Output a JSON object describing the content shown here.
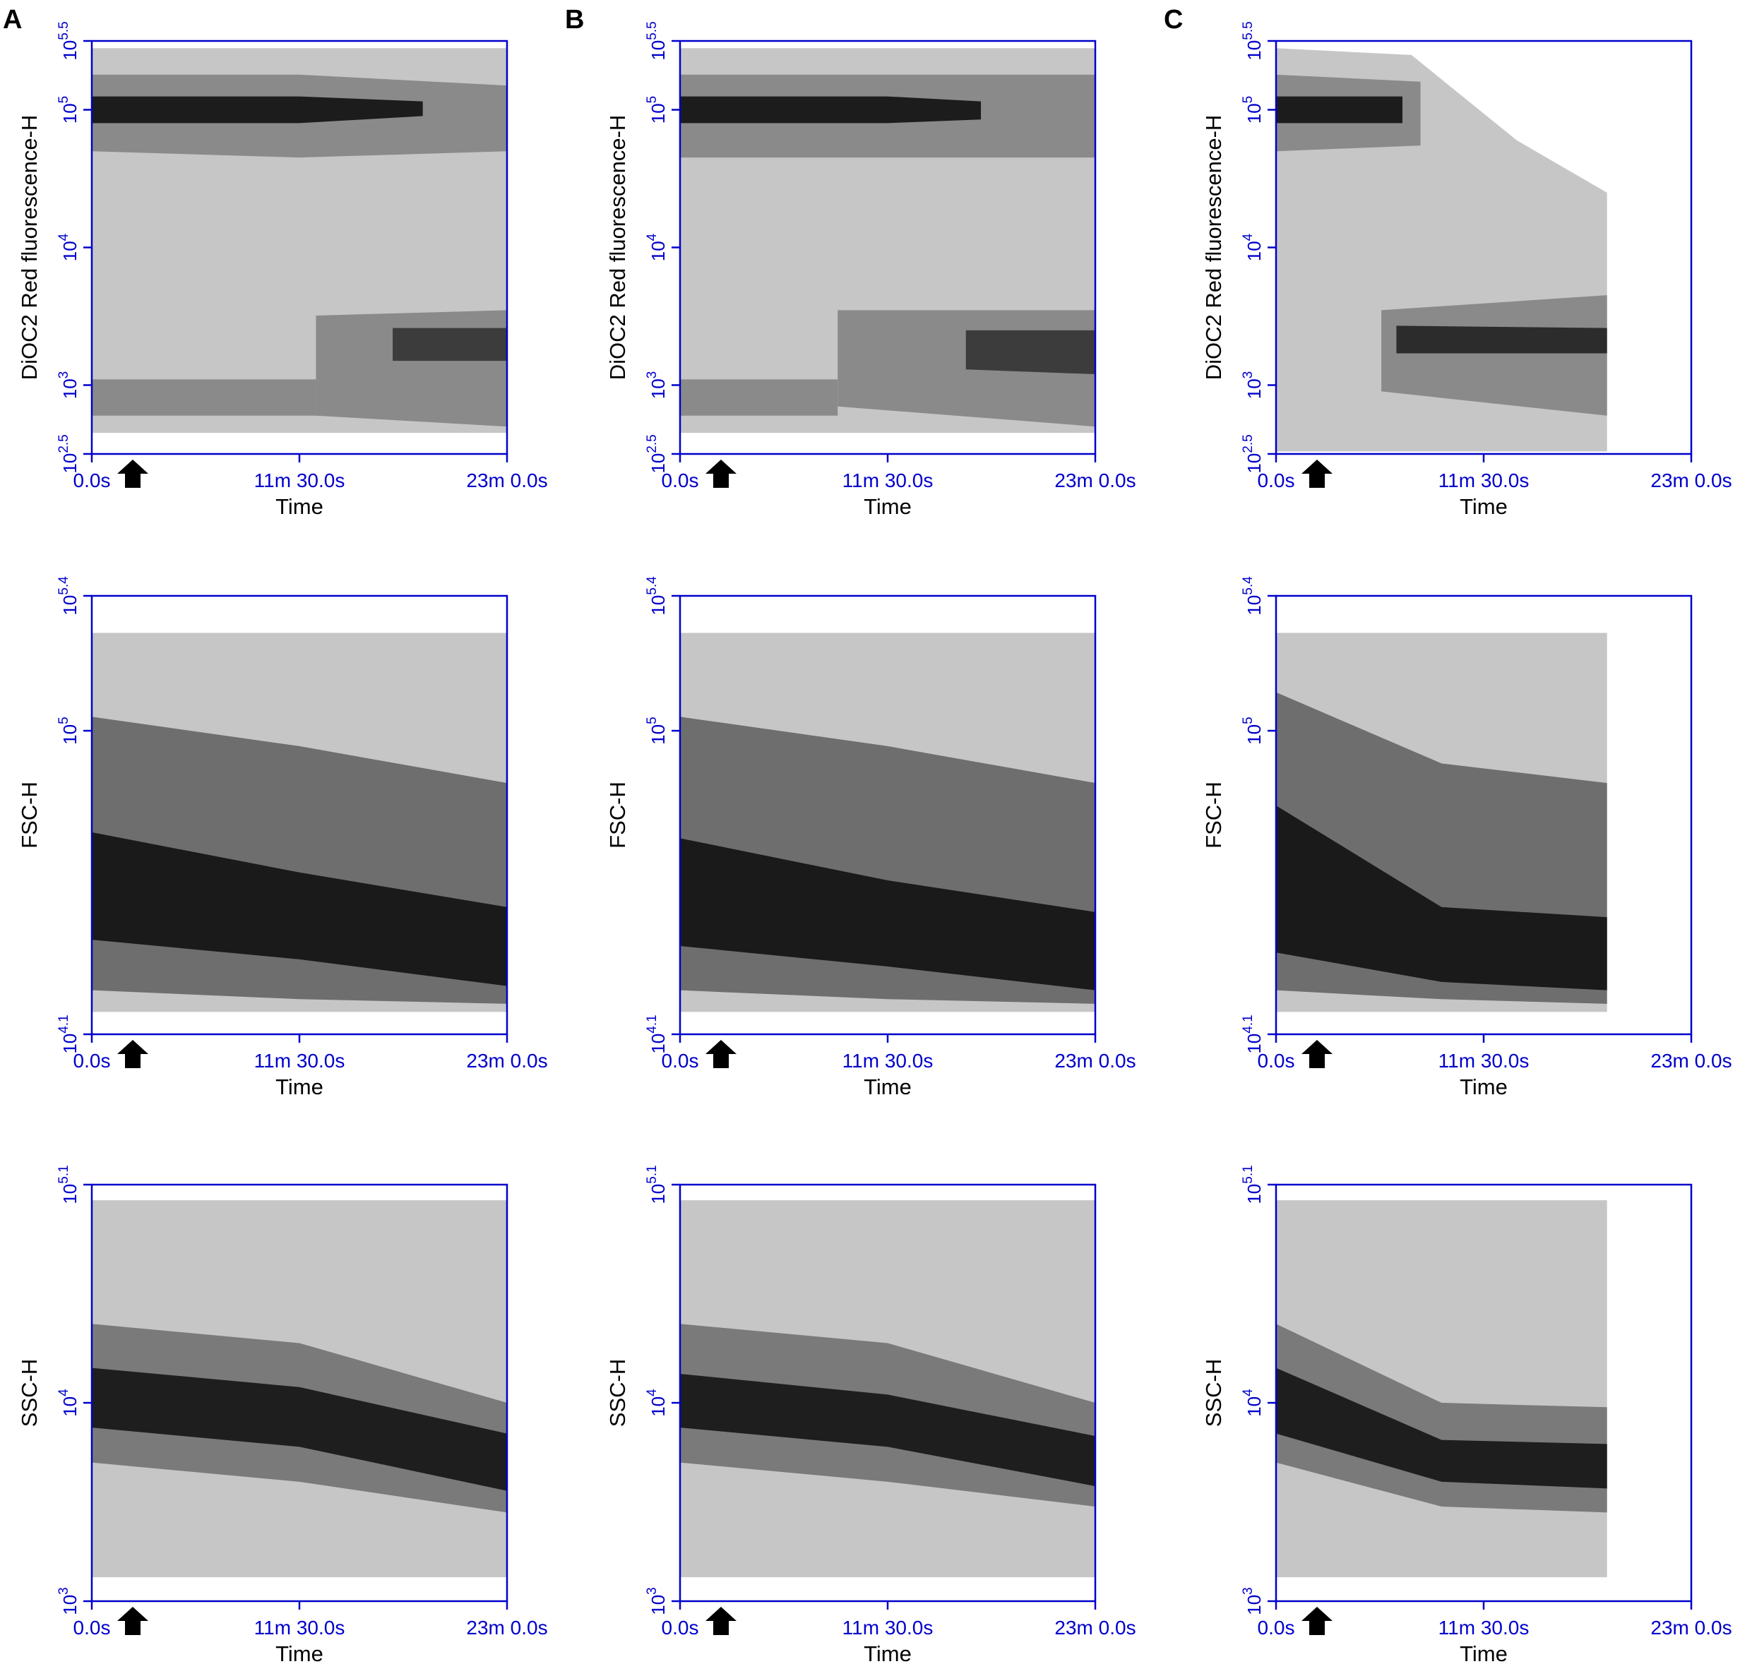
{
  "panel_labels": [
    "A",
    "B",
    "C"
  ],
  "chart_data": [
    {
      "type": "density",
      "xlabel": "Time",
      "ylabel": "DiOC2 Red fluorescence-H",
      "log_y": true,
      "axis_color": "#0000cc",
      "xlim": [
        0,
        1380
      ],
      "xticks": [
        {
          "value": 0,
          "label": "0.0s"
        },
        {
          "value": 690,
          "label": "11m 30.0s"
        },
        {
          "value": 1380,
          "label": "23m 0.0s"
        }
      ],
      "ylim": [
        316.2278,
        316227.8
      ],
      "yticks": [
        {
          "value": 316.2278,
          "base": "10",
          "exponent": "2.5"
        },
        {
          "value": 1000,
          "base": "10",
          "exponent": "3"
        },
        {
          "value": 10000,
          "base": "10",
          "exponent": "4"
        },
        {
          "value": 100000,
          "base": "10",
          "exponent": "5"
        },
        {
          "value": 316227.8,
          "base": "10",
          "exponent": "5.5"
        }
      ],
      "series": [
        {
          "color": "#c6c6c6",
          "x": [
            0,
            1380
          ],
          "low": [
            450,
            450
          ],
          "high": [
            280000,
            280000
          ]
        },
        {
          "color": "#8a8a8a",
          "x": [
            0,
            690,
            1380
          ],
          "low": [
            50000,
            45000,
            50000
          ],
          "high": [
            180000,
            180000,
            150000
          ]
        },
        {
          "color": "#1c1c1c",
          "x": [
            0,
            690,
            1100
          ],
          "low": [
            80000,
            80000,
            90000
          ],
          "high": [
            125000,
            125000,
            115000
          ]
        },
        {
          "color": "#8a8a8a",
          "x": [
            0,
            745
          ],
          "low": [
            600,
            600
          ],
          "high": [
            1100,
            1100
          ]
        },
        {
          "color": "#8a8a8a",
          "x": [
            745,
            1380
          ],
          "low": [
            600,
            500
          ],
          "high": [
            3200,
            3500
          ]
        },
        {
          "color": "#3c3c3c",
          "x": [
            1000,
            1380
          ],
          "low": [
            1500,
            1500
          ],
          "high": [
            2600,
            2600
          ]
        }
      ]
    },
    {
      "type": "density",
      "xlabel": "Time",
      "ylabel": "DiOC2 Red fluorescence-H",
      "log_y": true,
      "axis_color": "#0000cc",
      "xlim": [
        0,
        1380
      ],
      "xticks": [
        {
          "value": 0,
          "label": "0.0s"
        },
        {
          "value": 690,
          "label": "11m 30.0s"
        },
        {
          "value": 1380,
          "label": "23m 0.0s"
        }
      ],
      "ylim": [
        316.2278,
        316227.8
      ],
      "yticks": [
        {
          "value": 316.2278,
          "base": "10",
          "exponent": "2.5"
        },
        {
          "value": 1000,
          "base": "10",
          "exponent": "3"
        },
        {
          "value": 10000,
          "base": "10",
          "exponent": "4"
        },
        {
          "value": 100000,
          "base": "10",
          "exponent": "5"
        },
        {
          "value": 316227.8,
          "base": "10",
          "exponent": "5.5"
        }
      ],
      "series": [
        {
          "color": "#c6c6c6",
          "x": [
            0,
            1380
          ],
          "low": [
            450,
            450
          ],
          "high": [
            280000,
            280000
          ]
        },
        {
          "color": "#8a8a8a",
          "x": [
            0,
            1380
          ],
          "low": [
            45000,
            45000
          ],
          "high": [
            180000,
            180000
          ]
        },
        {
          "color": "#1c1c1c",
          "x": [
            0,
            690,
            1000
          ],
          "low": [
            80000,
            80000,
            85000
          ],
          "high": [
            125000,
            125000,
            115000
          ]
        },
        {
          "color": "#8a8a8a",
          "x": [
            0,
            524
          ],
          "low": [
            600,
            600
          ],
          "high": [
            1100,
            1100
          ]
        },
        {
          "color": "#8a8a8a",
          "x": [
            524,
            1380
          ],
          "low": [
            700,
            500
          ],
          "high": [
            3500,
            3500
          ]
        },
        {
          "color": "#3c3c3c",
          "x": [
            950,
            1380
          ],
          "low": [
            1300,
            1200
          ],
          "high": [
            2500,
            2500
          ]
        }
      ]
    },
    {
      "type": "density",
      "xlabel": "Time",
      "ylabel": "DiOC2 Red fluorescence-H",
      "log_y": true,
      "axis_color": "#0000cc",
      "xlim": [
        0,
        1380
      ],
      "xticks": [
        {
          "value": 0,
          "label": "0.0s"
        },
        {
          "value": 690,
          "label": "11m 30.0s"
        },
        {
          "value": 1380,
          "label": "23m 0.0s"
        }
      ],
      "ylim": [
        316.2278,
        316227.8
      ],
      "yticks": [
        {
          "value": 316.2278,
          "base": "10",
          "exponent": "2.5"
        },
        {
          "value": 1000,
          "base": "10",
          "exponent": "3"
        },
        {
          "value": 10000,
          "base": "10",
          "exponent": "4"
        },
        {
          "value": 100000,
          "base": "10",
          "exponent": "5"
        },
        {
          "value": 316227.8,
          "base": "10",
          "exponent": "5.5"
        }
      ],
      "series": [
        {
          "color": "#c6c6c6",
          "x": [
            0,
            450,
            800,
            1100
          ],
          "low": [
            330,
            330,
            330,
            330
          ],
          "high": [
            280000,
            250000,
            60000,
            25000
          ]
        },
        {
          "color": "#8a8a8a",
          "x": [
            0,
            480
          ],
          "low": [
            50000,
            55000
          ],
          "high": [
            180000,
            160000
          ]
        },
        {
          "color": "#1c1c1c",
          "x": [
            0,
            420
          ],
          "low": [
            80000,
            80000
          ],
          "high": [
            125000,
            125000
          ]
        },
        {
          "color": "#8a8a8a",
          "x": [
            350,
            1100
          ],
          "low": [
            900,
            600
          ],
          "high": [
            3500,
            4500
          ]
        },
        {
          "color": "#2c2c2c",
          "x": [
            400,
            1100
          ],
          "low": [
            1700,
            1700
          ],
          "high": [
            2700,
            2600
          ]
        }
      ]
    },
    {
      "type": "density",
      "xlabel": "Time",
      "ylabel": "FSC-H",
      "log_y": true,
      "axis_color": "#0000cc",
      "xlim": [
        0,
        1380
      ],
      "xticks": [
        {
          "value": 0,
          "label": "0.0s"
        },
        {
          "value": 690,
          "label": "11m 30.0s"
        },
        {
          "value": 1380,
          "label": "23m 0.0s"
        }
      ],
      "ylim": [
        12589.25,
        251188.6
      ],
      "yticks": [
        {
          "value": 12589.25,
          "base": "10",
          "exponent": "4.1"
        },
        {
          "value": 100000,
          "base": "10",
          "exponent": "5"
        },
        {
          "value": 251188.6,
          "base": "10",
          "exponent": "5.4"
        }
      ],
      "series": [
        {
          "color": "#c6c6c6",
          "x": [
            0,
            1380
          ],
          "low": [
            14660,
            14660
          ],
          "high": [
            195000,
            195000
          ]
        },
        {
          "color": "#6e6e6e",
          "x": [
            0,
            690,
            1380
          ],
          "low": [
            17000,
            16000,
            15500
          ],
          "high": [
            110000,
            90000,
            70000
          ]
        },
        {
          "color": "#1a1a1a",
          "x": [
            0,
            690,
            1380
          ],
          "low": [
            24000,
            21000,
            17500
          ],
          "high": [
            50000,
            38000,
            30000
          ]
        }
      ]
    },
    {
      "type": "density",
      "xlabel": "Time",
      "ylabel": "FSC-H",
      "log_y": true,
      "axis_color": "#0000cc",
      "xlim": [
        0,
        1380
      ],
      "xticks": [
        {
          "value": 0,
          "label": "0.0s"
        },
        {
          "value": 690,
          "label": "11m 30.0s"
        },
        {
          "value": 1380,
          "label": "23m 0.0s"
        }
      ],
      "ylim": [
        12589.25,
        251188.6
      ],
      "yticks": [
        {
          "value": 12589.25,
          "base": "10",
          "exponent": "4.1"
        },
        {
          "value": 100000,
          "base": "10",
          "exponent": "5"
        },
        {
          "value": 251188.6,
          "base": "10",
          "exponent": "5.4"
        }
      ],
      "series": [
        {
          "color": "#c6c6c6",
          "x": [
            0,
            1380
          ],
          "low": [
            14660,
            14660
          ],
          "high": [
            195000,
            195000
          ]
        },
        {
          "color": "#6e6e6e",
          "x": [
            0,
            690,
            1380
          ],
          "low": [
            17000,
            16000,
            15500
          ],
          "high": [
            110000,
            90000,
            70000
          ]
        },
        {
          "color": "#1a1a1a",
          "x": [
            0,
            690,
            1380
          ],
          "low": [
            23000,
            20000,
            17000
          ],
          "high": [
            48000,
            36000,
            29000
          ]
        }
      ]
    },
    {
      "type": "density",
      "xlabel": "Time",
      "ylabel": "FSC-H",
      "log_y": true,
      "axis_color": "#0000cc",
      "xlim": [
        0,
        1380
      ],
      "xticks": [
        {
          "value": 0,
          "label": "0.0s"
        },
        {
          "value": 690,
          "label": "11m 30.0s"
        },
        {
          "value": 1380,
          "label": "23m 0.0s"
        }
      ],
      "ylim": [
        12589.25,
        251188.6
      ],
      "yticks": [
        {
          "value": 12589.25,
          "base": "10",
          "exponent": "4.1"
        },
        {
          "value": 100000,
          "base": "10",
          "exponent": "5"
        },
        {
          "value": 251188.6,
          "base": "10",
          "exponent": "5.4"
        }
      ],
      "series": [
        {
          "color": "#c6c6c6",
          "x": [
            0,
            1100
          ],
          "low": [
            14660,
            14660
          ],
          "high": [
            195000,
            195000
          ]
        },
        {
          "color": "#6e6e6e",
          "x": [
            0,
            550,
            1100
          ],
          "low": [
            17000,
            16000,
            15500
          ],
          "high": [
            130000,
            80000,
            70000
          ]
        },
        {
          "color": "#1a1a1a",
          "x": [
            0,
            550,
            1100
          ],
          "low": [
            22000,
            18000,
            17000
          ],
          "high": [
            60000,
            30000,
            28000
          ]
        }
      ]
    },
    {
      "type": "density",
      "xlabel": "Time",
      "ylabel": "SSC-H",
      "log_y": true,
      "axis_color": "#0000cc",
      "xlim": [
        0,
        1380
      ],
      "xticks": [
        {
          "value": 0,
          "label": "0.0s"
        },
        {
          "value": 690,
          "label": "11m 30.0s"
        },
        {
          "value": 1380,
          "label": "23m 0.0s"
        }
      ],
      "ylim": [
        1000,
        125892.5
      ],
      "yticks": [
        {
          "value": 1000,
          "base": "10",
          "exponent": "3"
        },
        {
          "value": 10000,
          "base": "10",
          "exponent": "4"
        },
        {
          "value": 125892.5,
          "base": "10",
          "exponent": "5.1"
        }
      ],
      "series": [
        {
          "color": "#c6c6c6",
          "x": [
            0,
            1380
          ],
          "low": [
            1320,
            1320
          ],
          "high": [
            105000,
            105000
          ]
        },
        {
          "color": "#7a7a7a",
          "x": [
            0,
            690,
            1380
          ],
          "low": [
            5000,
            4000,
            2800
          ],
          "high": [
            25000,
            20000,
            10000
          ]
        },
        {
          "color": "#1e1e1e",
          "x": [
            0,
            690,
            1380
          ],
          "low": [
            7500,
            6000,
            3600
          ],
          "high": [
            15000,
            12000,
            7000
          ]
        }
      ]
    },
    {
      "type": "density",
      "xlabel": "Time",
      "ylabel": "SSC-H",
      "log_y": true,
      "axis_color": "#0000cc",
      "xlim": [
        0,
        1380
      ],
      "xticks": [
        {
          "value": 0,
          "label": "0.0s"
        },
        {
          "value": 690,
          "label": "11m 30.0s"
        },
        {
          "value": 1380,
          "label": "23m 0.0s"
        }
      ],
      "ylim": [
        1000,
        125892.5
      ],
      "yticks": [
        {
          "value": 1000,
          "base": "10",
          "exponent": "3"
        },
        {
          "value": 10000,
          "base": "10",
          "exponent": "4"
        },
        {
          "value": 125892.5,
          "base": "10",
          "exponent": "5.1"
        }
      ],
      "series": [
        {
          "color": "#c6c6c6",
          "x": [
            0,
            1380
          ],
          "low": [
            1320,
            1320
          ],
          "high": [
            105000,
            105000
          ]
        },
        {
          "color": "#7a7a7a",
          "x": [
            0,
            690,
            1380
          ],
          "low": [
            5000,
            4000,
            3000
          ],
          "high": [
            25000,
            20000,
            10000
          ]
        },
        {
          "color": "#1e1e1e",
          "x": [
            0,
            690,
            1380
          ],
          "low": [
            7500,
            6000,
            3800
          ],
          "high": [
            14000,
            11000,
            6800
          ]
        }
      ]
    },
    {
      "type": "density",
      "xlabel": "Time",
      "ylabel": "SSC-H",
      "log_y": true,
      "axis_color": "#0000cc",
      "xlim": [
        0,
        1380
      ],
      "xticks": [
        {
          "value": 0,
          "label": "0.0s"
        },
        {
          "value": 690,
          "label": "11m 30.0s"
        },
        {
          "value": 1380,
          "label": "23m 0.0s"
        }
      ],
      "ylim": [
        1000,
        125892.5
      ],
      "yticks": [
        {
          "value": 1000,
          "base": "10",
          "exponent": "3"
        },
        {
          "value": 10000,
          "base": "10",
          "exponent": "4"
        },
        {
          "value": 125892.5,
          "base": "10",
          "exponent": "5.1"
        }
      ],
      "series": [
        {
          "color": "#c6c6c6",
          "x": [
            0,
            1100
          ],
          "low": [
            1320,
            1320
          ],
          "high": [
            105000,
            105000
          ]
        },
        {
          "color": "#7a7a7a",
          "x": [
            0,
            550,
            1100
          ],
          "low": [
            5000,
            3000,
            2800
          ],
          "high": [
            25000,
            10000,
            9500
          ]
        },
        {
          "color": "#1e1e1e",
          "x": [
            0,
            550,
            1100
          ],
          "low": [
            7000,
            4000,
            3700
          ],
          "high": [
            15000,
            6500,
            6200
          ]
        }
      ]
    }
  ]
}
